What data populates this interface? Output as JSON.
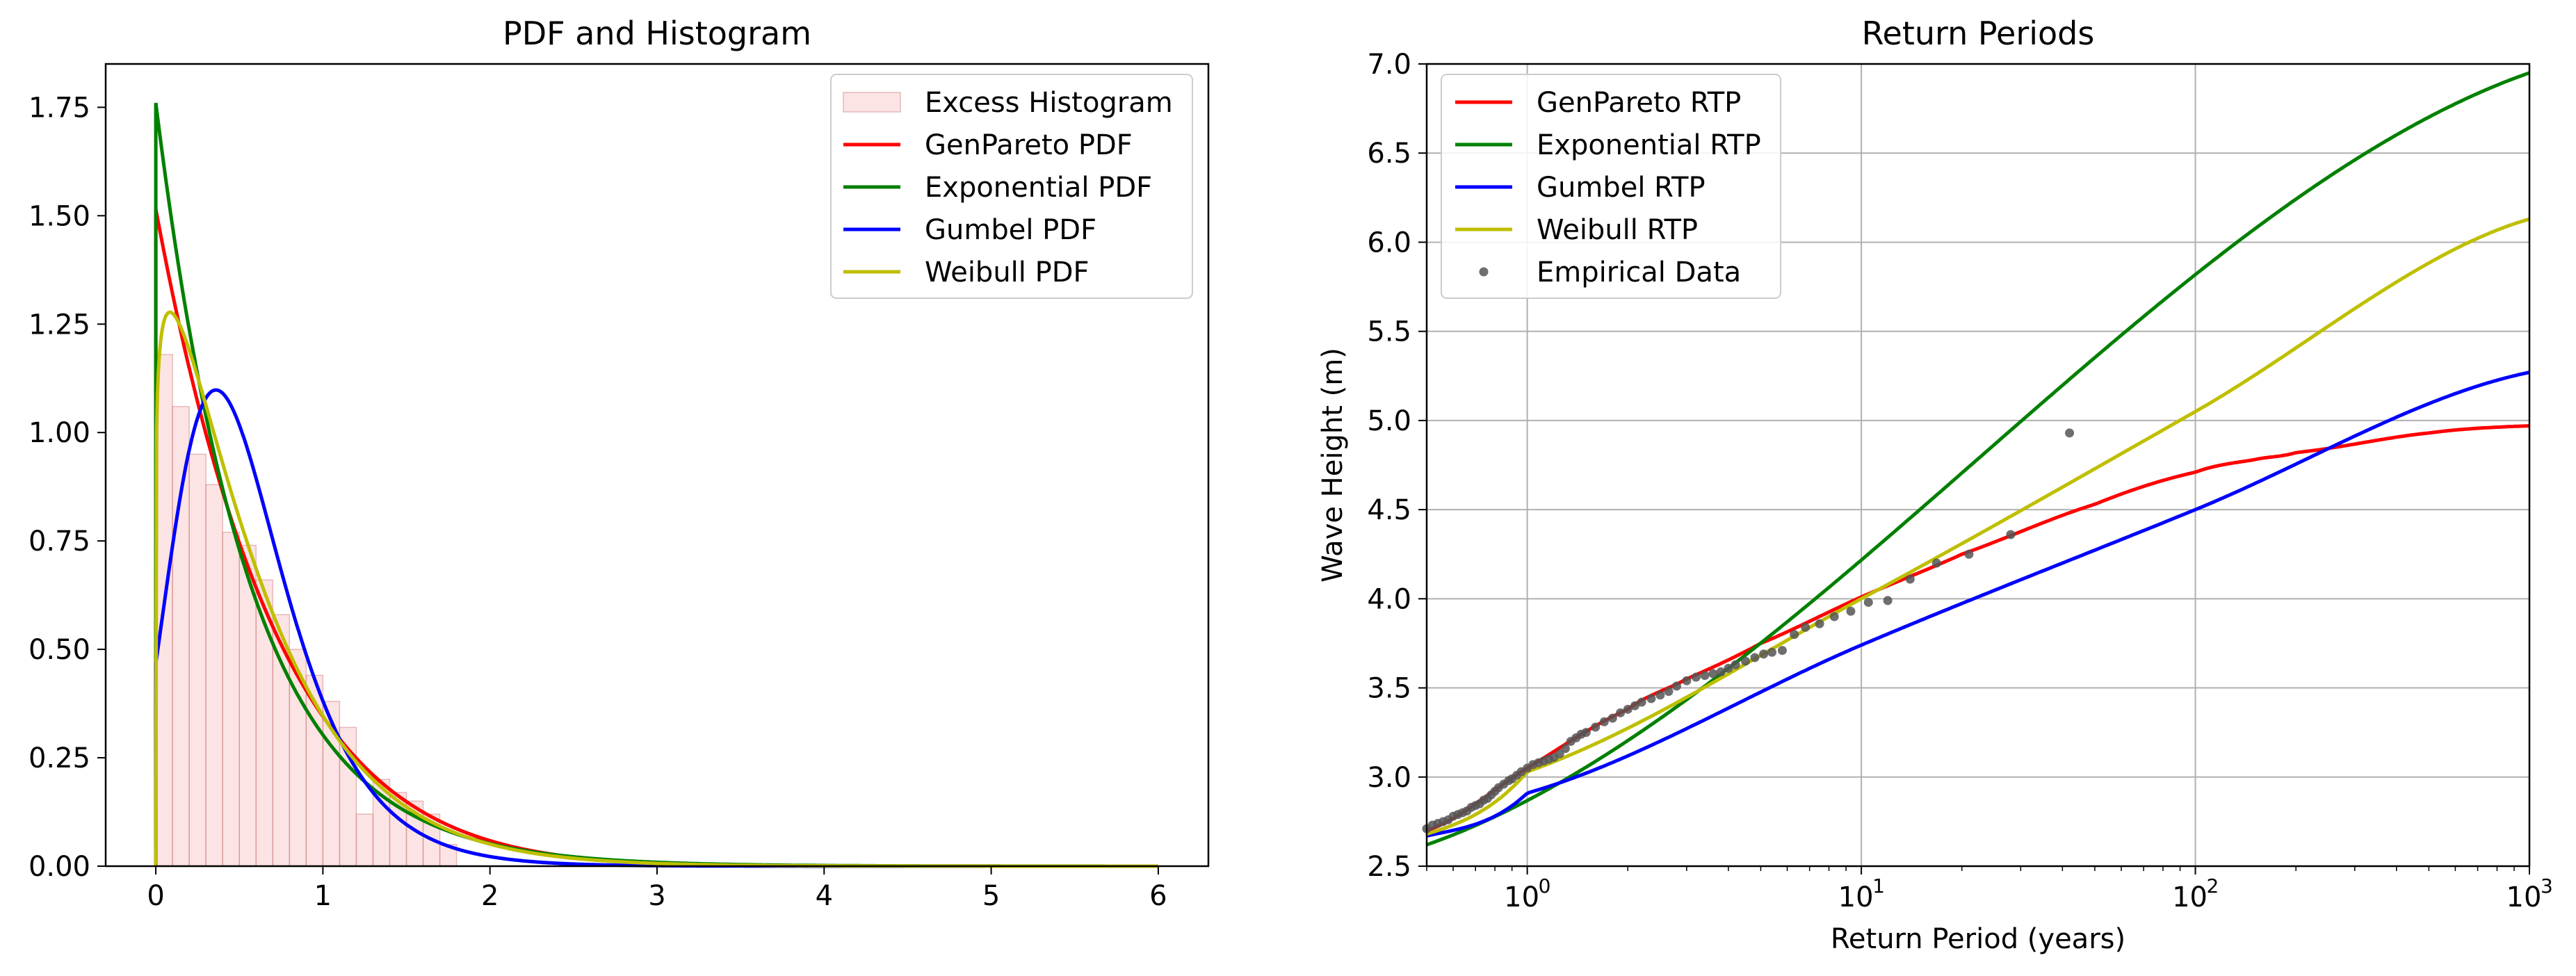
{
  "chart_data": [
    {
      "type": "line",
      "title": "PDF and Histogram",
      "xlabel": "",
      "ylabel": "",
      "xlim": [
        -0.3,
        6.3
      ],
      "ylim": [
        0,
        1.85
      ],
      "x_ticks": [
        "0",
        "1",
        "2",
        "3",
        "4",
        "5",
        "6"
      ],
      "y_ticks": [
        "0.00",
        "0.25",
        "0.50",
        "0.75",
        "1.00",
        "1.25",
        "1.50",
        "1.75"
      ],
      "grid": false,
      "legend_position": "upper right",
      "histogram": {
        "name": "Excess Histogram",
        "color": "#f4a6a6",
        "bin_edges": [
          0,
          0.1,
          0.2,
          0.3,
          0.4,
          0.5,
          0.6,
          0.7,
          0.8,
          0.9,
          1.0,
          1.1,
          1.2,
          1.3,
          1.4,
          1.5,
          1.6,
          1.7,
          1.8
        ],
        "values": [
          1.18,
          1.06,
          0.95,
          0.88,
          0.77,
          0.74,
          0.66,
          0.58,
          0.5,
          0.44,
          0.38,
          0.32,
          0.12,
          0.2,
          0.17,
          0.15,
          0.12,
          0.05
        ]
      },
      "series": [
        {
          "name": "GenPareto PDF",
          "color": "#ff0000",
          "model": "genpareto",
          "params": {
            "xi": -0.1,
            "sigma": 0.66
          }
        },
        {
          "name": "Exponential PDF",
          "color": "#008000",
          "model": "exponential",
          "params": {
            "rate": 1.76
          }
        },
        {
          "name": "Gumbel PDF",
          "color": "#0000ff",
          "model": "gumbel",
          "params": {
            "mu": 0.36,
            "beta": 0.335
          }
        },
        {
          "name": "Weibull PDF",
          "color": "#bfbf00",
          "model": "weibull",
          "params": {
            "k": 1.12,
            "lambda": 0.62
          }
        }
      ],
      "x_range": [
        0,
        6
      ]
    },
    {
      "type": "line",
      "title": "Return Periods",
      "xlabel": "Return Period (years)",
      "ylabel": "Wave Height (m)",
      "x_scale": "log",
      "xlim": [
        0.5,
        1000
      ],
      "ylim": [
        2.5,
        7.0
      ],
      "x_ticks": [
        {
          "base": "10",
          "exp": "0"
        },
        {
          "base": "10",
          "exp": "1"
        },
        {
          "base": "10",
          "exp": "2"
        },
        {
          "base": "10",
          "exp": "3"
        }
      ],
      "y_ticks": [
        "2.5",
        "3.0",
        "3.5",
        "4.0",
        "4.5",
        "5.0",
        "5.5",
        "6.0",
        "6.5",
        "7.0"
      ],
      "grid": true,
      "legend_position": "upper left",
      "series": [
        {
          "name": "GenPareto RTP",
          "color": "#ff0000",
          "x": [
            0.5,
            1,
            2,
            3,
            5,
            10,
            20,
            50,
            100,
            150,
            200,
            500,
            1000
          ],
          "y": [
            2.7,
            3.05,
            3.38,
            3.55,
            3.75,
            4.01,
            4.25,
            4.53,
            4.71,
            4.78,
            4.82,
            4.93,
            4.97
          ]
        },
        {
          "name": "Exponential RTP",
          "color": "#008000",
          "x": [
            0.5,
            1000
          ],
          "y": [
            2.62,
            6.95
          ]
        },
        {
          "name": "Gumbel RTP",
          "color": "#0000ff",
          "x": [
            0.5,
            1,
            10,
            100,
            1000
          ],
          "y": [
            2.67,
            2.91,
            3.74,
            4.5,
            5.27
          ]
        },
        {
          "name": "Weibull RTP",
          "color": "#bfbf00",
          "x": [
            0.5,
            1,
            10,
            100,
            1000
          ],
          "y": [
            2.68,
            3.03,
            4.0,
            5.05,
            6.13
          ]
        }
      ],
      "scatter": {
        "name": "Empirical Data",
        "color": "#555555",
        "x": [
          0.5,
          0.52,
          0.54,
          0.56,
          0.58,
          0.6,
          0.62,
          0.64,
          0.66,
          0.68,
          0.7,
          0.72,
          0.74,
          0.76,
          0.78,
          0.8,
          0.82,
          0.85,
          0.88,
          0.9,
          0.93,
          0.96,
          1.0,
          1.04,
          1.08,
          1.12,
          1.16,
          1.2,
          1.25,
          1.3,
          1.35,
          1.4,
          1.45,
          1.5,
          1.6,
          1.7,
          1.8,
          1.9,
          2.0,
          2.1,
          2.2,
          2.35,
          2.5,
          2.65,
          2.8,
          3.0,
          3.2,
          3.4,
          3.6,
          3.8,
          4.0,
          4.2,
          4.5,
          4.8,
          5.1,
          5.4,
          5.8,
          6.3,
          6.8,
          7.5,
          8.3,
          9.3,
          10.5,
          12.0,
          14.0,
          16.8,
          21.0,
          28.0,
          42.0
        ],
        "y": [
          2.71,
          2.73,
          2.74,
          2.75,
          2.76,
          2.78,
          2.79,
          2.8,
          2.81,
          2.83,
          2.84,
          2.85,
          2.87,
          2.88,
          2.9,
          2.92,
          2.94,
          2.96,
          2.98,
          2.99,
          3.01,
          3.03,
          3.05,
          3.07,
          3.08,
          3.09,
          3.1,
          3.11,
          3.13,
          3.16,
          3.2,
          3.22,
          3.24,
          3.25,
          3.28,
          3.31,
          3.33,
          3.36,
          3.38,
          3.4,
          3.42,
          3.44,
          3.46,
          3.48,
          3.51,
          3.54,
          3.56,
          3.57,
          3.58,
          3.59,
          3.61,
          3.63,
          3.65,
          3.67,
          3.69,
          3.7,
          3.71,
          3.8,
          3.84,
          3.86,
          3.9,
          3.93,
          3.98,
          3.99,
          4.11,
          4.2,
          4.25,
          4.36,
          4.93
        ]
      }
    }
  ]
}
